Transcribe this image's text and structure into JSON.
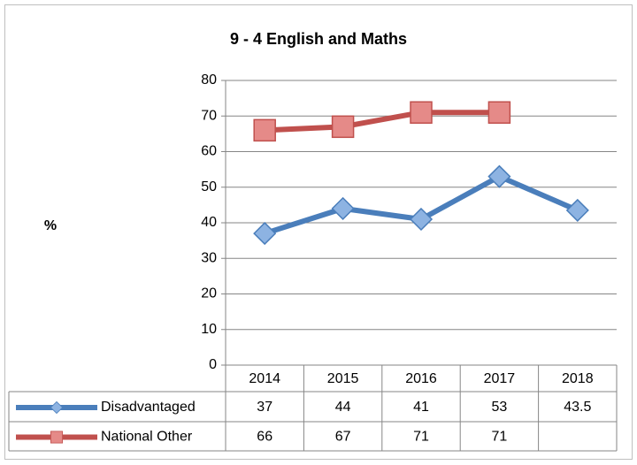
{
  "chart_data": {
    "type": "line",
    "title": "9 - 4 English and Maths",
    "y_label": "%",
    "categories": [
      "2014",
      "2015",
      "2016",
      "2017",
      "2018"
    ],
    "series": [
      {
        "name": "Disadvantaged",
        "color": "#4a7ebb",
        "marker": "diamond",
        "values": [
          37,
          44,
          41,
          53,
          43.5
        ]
      },
      {
        "name": "National Other",
        "color": "#c0504d",
        "marker": "square",
        "values": [
          66,
          67,
          71,
          71,
          null
        ]
      }
    ],
    "ylim": [
      0,
      80
    ],
    "yticks": [
      0,
      10,
      20,
      30,
      40,
      50,
      60,
      70,
      80
    ],
    "grid": true,
    "legend": "data-table"
  }
}
